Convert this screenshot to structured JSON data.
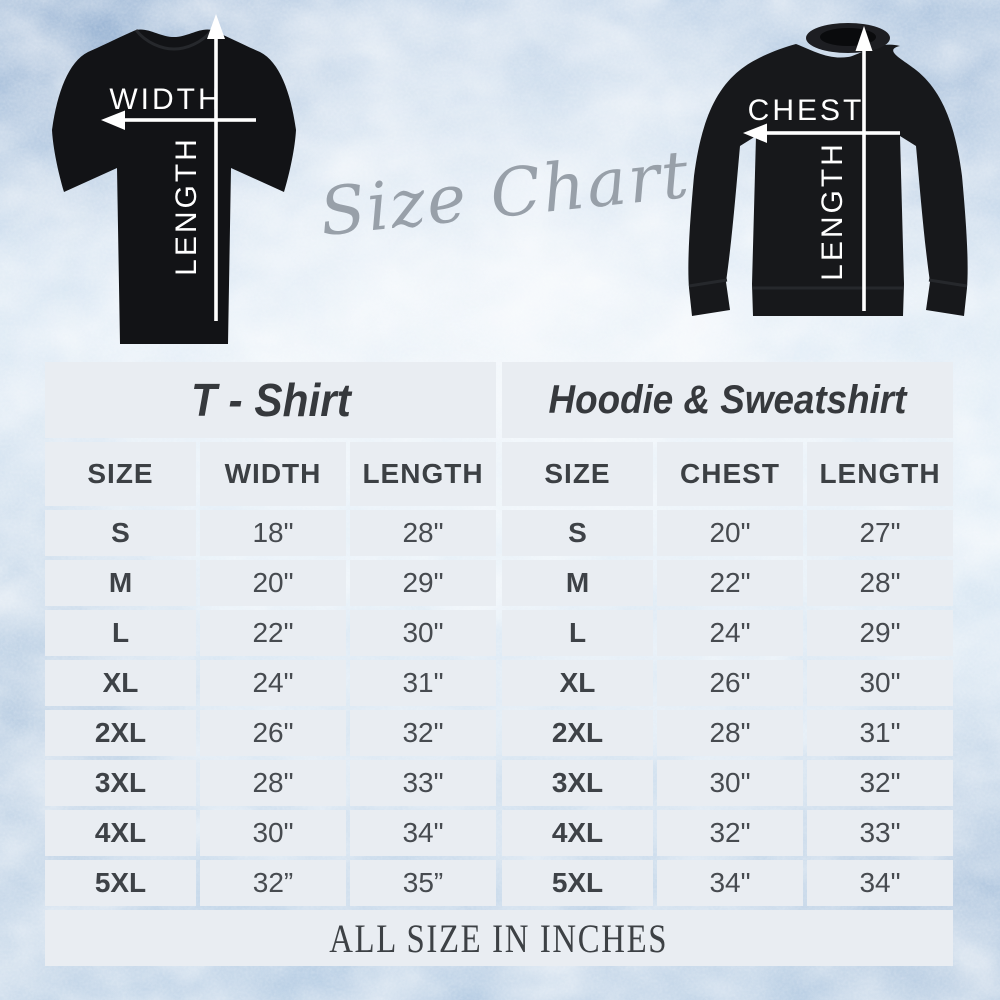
{
  "script_title": "Size Chart",
  "diagrams": {
    "tshirt": {
      "width_label": "WIDTH",
      "length_label": "LENGTH"
    },
    "sweatshirt": {
      "chest_label": "CHEST",
      "length_label": "LENGTH"
    }
  },
  "tables": [
    {
      "title": "T - Shirt",
      "columns": [
        "SIZE",
        "WIDTH",
        "LENGTH"
      ],
      "rows": [
        [
          "S",
          "18\"",
          "28\""
        ],
        [
          "M",
          "20\"",
          "29\""
        ],
        [
          "L",
          "22\"",
          "30\""
        ],
        [
          "XL",
          "24\"",
          "31\""
        ],
        [
          "2XL",
          "26\"",
          "32\""
        ],
        [
          "3XL",
          "28\"",
          "33\""
        ],
        [
          "4XL",
          "30\"",
          "34\""
        ],
        [
          "5XL",
          "32”",
          "35”"
        ]
      ]
    },
    {
      "title": "Hoodie & Sweatshirt",
      "columns": [
        "SIZE",
        "CHEST",
        "LENGTH"
      ],
      "rows": [
        [
          "S",
          "20\"",
          "27\""
        ],
        [
          "M",
          "22\"",
          "28\""
        ],
        [
          "L",
          "24\"",
          "29\""
        ],
        [
          "XL",
          "26\"",
          "30\""
        ],
        [
          "2XL",
          "28\"",
          "31\""
        ],
        [
          "3XL",
          "30\"",
          "32\""
        ],
        [
          "4XL",
          "32\"",
          "33\""
        ],
        [
          "5XL",
          "34\"",
          "34\""
        ]
      ]
    }
  ],
  "footer": "ALL SIZE IN INCHES",
  "colors": {
    "background_blue": "#cddced",
    "cell_bg": "#e9edf2",
    "gap": "#d5e1eb",
    "text_dark": "#3e4247",
    "script_gray": "#98a0a9",
    "garment_black": "#131417",
    "arrow_white": "#ffffff"
  },
  "chart_data": [
    {
      "type": "table",
      "title": "T - Shirt",
      "columns": [
        "SIZE",
        "WIDTH",
        "LENGTH"
      ],
      "rows": [
        [
          "S",
          "18\"",
          "28\""
        ],
        [
          "M",
          "20\"",
          "29\""
        ],
        [
          "L",
          "22\"",
          "30\""
        ],
        [
          "XL",
          "24\"",
          "31\""
        ],
        [
          "2XL",
          "26\"",
          "32\""
        ],
        [
          "3XL",
          "28\"",
          "33\""
        ],
        [
          "4XL",
          "30\"",
          "34\""
        ],
        [
          "5XL",
          "32”",
          "35”"
        ]
      ]
    },
    {
      "type": "table",
      "title": "Hoodie & Sweatshirt",
      "columns": [
        "SIZE",
        "CHEST",
        "LENGTH"
      ],
      "rows": [
        [
          "S",
          "20\"",
          "27\""
        ],
        [
          "M",
          "22\"",
          "28\""
        ],
        [
          "L",
          "24\"",
          "29\""
        ],
        [
          "XL",
          "26\"",
          "30\""
        ],
        [
          "2XL",
          "28\"",
          "31\""
        ],
        [
          "3XL",
          "30\"",
          "32\""
        ],
        [
          "4XL",
          "32\"",
          "33\""
        ],
        [
          "5XL",
          "34\"",
          "34\""
        ]
      ]
    }
  ]
}
